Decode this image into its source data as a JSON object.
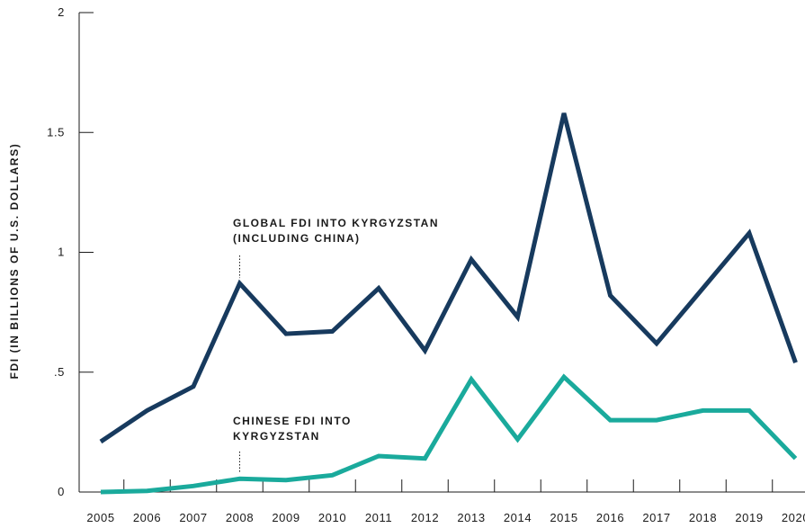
{
  "chart_data": {
    "type": "line",
    "title": "",
    "xlabel": "",
    "ylabel": "FDI (IN BILLIONS OF U.S. DOLLARS)",
    "ylim": [
      0,
      2
    ],
    "y_ticks": [
      {
        "value": 0,
        "label": "0"
      },
      {
        "value": 0.5,
        "label": ".5"
      },
      {
        "value": 1,
        "label": "1"
      },
      {
        "value": 1.5,
        "label": "1.5"
      },
      {
        "value": 2,
        "label": "2"
      }
    ],
    "x": [
      "2005",
      "2006",
      "2007",
      "2008",
      "2009",
      "2010",
      "2011",
      "2012",
      "2013",
      "2014",
      "2015",
      "2016",
      "2017",
      "2018",
      "2019",
      "2020"
    ],
    "grid": false,
    "series": [
      {
        "name": "GLOBAL FDI INTO KYRGYZSTAN (INCLUDING CHINA)",
        "color": "#173a5e",
        "values": [
          0.21,
          0.34,
          0.44,
          0.87,
          0.66,
          0.67,
          0.85,
          0.59,
          0.97,
          0.73,
          1.58,
          0.82,
          0.62,
          0.85,
          1.08,
          0.54
        ]
      },
      {
        "name": "CHINESE FDI INTO KYRGYZSTAN",
        "color": "#1aaa9c",
        "values": [
          0.0,
          0.005,
          0.025,
          0.055,
          0.05,
          0.07,
          0.15,
          0.14,
          0.47,
          0.22,
          0.48,
          0.3,
          0.3,
          0.34,
          0.34,
          0.14
        ]
      }
    ],
    "annotations": [
      {
        "series": 0,
        "x": "2008",
        "lines": [
          "GLOBAL FDI INTO KYRGYZSTAN",
          "(INCLUDING CHINA)"
        ]
      },
      {
        "series": 1,
        "x": "2008",
        "lines": [
          "CHINESE FDI INTO",
          "KYRGYZSTAN"
        ]
      }
    ]
  }
}
